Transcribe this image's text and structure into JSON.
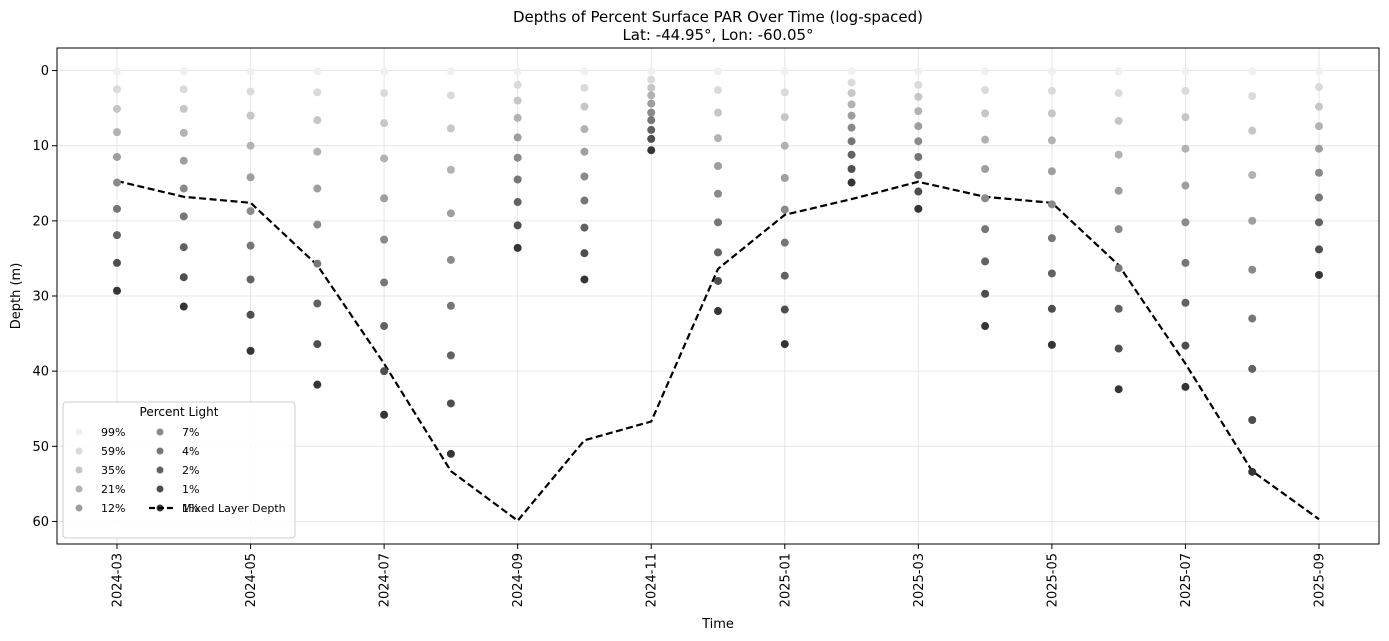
{
  "chart_data": {
    "type": "scatter",
    "title_line1": "Depths of Percent Surface PAR Over Time (log-spaced)",
    "title_line2": "Lat: -44.95°, Lon: -60.05°",
    "xlabel": "Time",
    "ylabel": "Depth (m)",
    "ylim": [
      63,
      -3
    ],
    "grid": true,
    "y_ticks": [
      "0",
      "10",
      "20",
      "30",
      "40",
      "50",
      "60"
    ],
    "x_ticks": [
      "2024-03",
      "2024-05",
      "2024-07",
      "2024-09",
      "2024-11",
      "2025-01",
      "2025-03",
      "2025-05",
      "2025-07",
      "2025-09"
    ],
    "months": [
      "2024-03",
      "2024-04",
      "2024-05",
      "2024-06",
      "2024-07",
      "2024-08",
      "2024-09",
      "2024-10",
      "2024-11",
      "2024-12",
      "2025-01",
      "2025-02",
      "2025-03",
      "2025-04",
      "2025-05",
      "2025-06",
      "2025-07",
      "2025-08",
      "2025-09"
    ],
    "legend": {
      "title": "Percent Light",
      "position": "lower-left",
      "line_label": "Mixed Layer Depth"
    },
    "series": [
      {
        "name": "99%",
        "color": "#f0f0f0",
        "values": [
          0.1,
          0.1,
          0.1,
          0.1,
          0.1,
          0.1,
          0.1,
          0.1,
          0.1,
          0.1,
          0.1,
          0.1,
          0.1,
          0.1,
          0.1,
          0.1,
          0.1,
          0.1,
          0.1
        ]
      },
      {
        "name": "59%",
        "color": "#dadada",
        "values": [
          2.5,
          2.5,
          2.8,
          2.9,
          3.0,
          3.3,
          1.9,
          2.3,
          1.2,
          2.6,
          2.9,
          1.6,
          1.9,
          2.6,
          2.7,
          3.0,
          2.7,
          3.4,
          2.2
        ]
      },
      {
        "name": "35%",
        "color": "#c6c6c6",
        "values": [
          5.1,
          5.1,
          6.0,
          6.6,
          7.0,
          7.7,
          4.0,
          4.8,
          2.3,
          5.6,
          6.2,
          3.0,
          3.5,
          5.7,
          5.7,
          6.7,
          6.2,
          8.0,
          4.8
        ]
      },
      {
        "name": "21%",
        "color": "#b2b2b2",
        "values": [
          8.2,
          8.3,
          10.0,
          10.8,
          11.7,
          13.2,
          6.3,
          7.8,
          3.3,
          9.0,
          10.0,
          4.5,
          5.4,
          9.2,
          9.3,
          11.2,
          10.4,
          13.9,
          7.4
        ]
      },
      {
        "name": "12%",
        "color": "#9e9e9e",
        "values": [
          11.5,
          12.0,
          14.2,
          15.7,
          17.0,
          19.0,
          8.9,
          10.8,
          4.4,
          12.7,
          14.3,
          6.0,
          7.4,
          13.1,
          13.4,
          16.0,
          15.3,
          20.0,
          10.4
        ]
      },
      {
        "name": "7%",
        "color": "#8a8a8a",
        "values": [
          14.9,
          15.7,
          18.7,
          20.5,
          22.5,
          25.2,
          11.6,
          14.1,
          5.6,
          16.4,
          18.5,
          7.6,
          9.4,
          17.0,
          17.8,
          21.1,
          20.2,
          26.5,
          13.6
        ]
      },
      {
        "name": "4%",
        "color": "#767676",
        "values": [
          18.4,
          19.4,
          23.3,
          25.7,
          28.2,
          31.3,
          14.5,
          17.3,
          6.6,
          20.2,
          22.9,
          9.4,
          11.5,
          21.1,
          22.3,
          26.3,
          25.6,
          33.0,
          16.9
        ]
      },
      {
        "name": "2%",
        "color": "#626262",
        "values": [
          21.9,
          23.5,
          27.8,
          31.0,
          34.0,
          37.9,
          17.5,
          20.9,
          7.9,
          24.2,
          27.3,
          11.2,
          13.9,
          25.4,
          27.0,
          31.7,
          30.9,
          39.7,
          20.2
        ]
      },
      {
        "name": "1%",
        "color": "#4e4e4e",
        "values": [
          25.6,
          27.5,
          32.5,
          36.4,
          40.0,
          44.3,
          20.6,
          24.3,
          9.1,
          28.0,
          31.8,
          13.1,
          16.1,
          29.7,
          31.7,
          37.0,
          36.6,
          46.5,
          23.8
        ]
      },
      {
        "name": "1%",
        "color": "#353535",
        "values": [
          29.3,
          31.4,
          37.3,
          41.8,
          45.8,
          51.0,
          23.6,
          27.8,
          10.6,
          32.0,
          36.4,
          14.9,
          18.4,
          34.0,
          36.5,
          42.4,
          42.1,
          53.4,
          27.2
        ]
      }
    ],
    "mixed_layer_depth": [
      14.7,
      16.8,
      17.6,
      25.9,
      39.0,
      53.3,
      59.9,
      49.2,
      46.7,
      26.4,
      19.2,
      17.1,
      14.8,
      16.8,
      17.6,
      25.9,
      39.0,
      53.3,
      59.7
    ]
  }
}
